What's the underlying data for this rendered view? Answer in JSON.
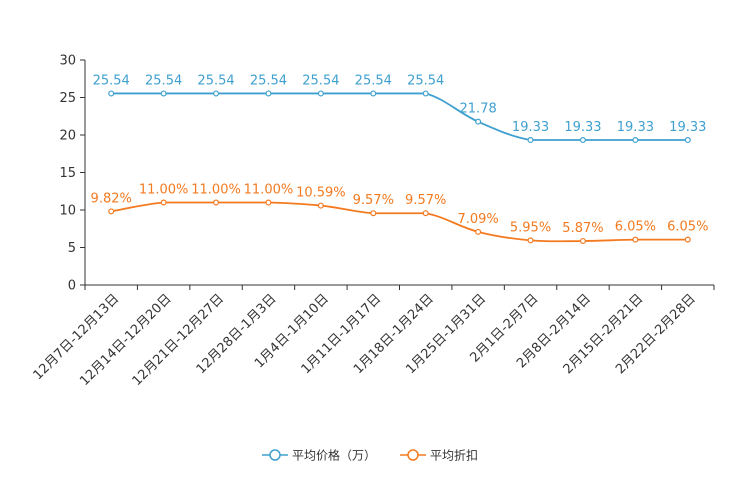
{
  "chart_data": {
    "type": "line",
    "title": "",
    "xlabel": "",
    "ylabel": "",
    "ylim": [
      0,
      30
    ],
    "yticks": [
      0,
      5,
      10,
      15,
      20,
      25,
      30
    ],
    "grid": false,
    "legend_position": "bottom-center",
    "categories": [
      "12月7日-12月13日",
      "12月14日-12月20日",
      "12月21日-12月27日",
      "12月28日-1月3日",
      "1月4日-1月10日",
      "1月11日-1月17日",
      "1月18日-1月24日",
      "1月25日-1月31日",
      "2月1日-2月7日",
      "2月8日-2月14日",
      "2月15日-2月21日",
      "2月22日-2月28日"
    ],
    "series": [
      {
        "name": "平均价格（万）",
        "color": "#3fa0cf",
        "values": [
          25.54,
          25.54,
          25.54,
          25.54,
          25.54,
          25.54,
          25.54,
          21.78,
          19.33,
          19.33,
          19.33,
          19.33
        ],
        "labels": [
          "25.54",
          "25.54",
          "25.54",
          "25.54",
          "25.54",
          "25.54",
          "25.54",
          "21.78",
          "19.33",
          "19.33",
          "19.33",
          "19.33"
        ]
      },
      {
        "name": "平均折扣",
        "color": "#f47a20",
        "values": [
          9.82,
          11.0,
          11.0,
          11.0,
          10.59,
          9.57,
          9.57,
          7.09,
          5.95,
          5.87,
          6.05,
          6.05
        ],
        "labels": [
          "9.82%",
          "11.00%",
          "11.00%",
          "11.00%",
          "10.59%",
          "9.57%",
          "9.57%",
          "7.09%",
          "5.95%",
          "5.87%",
          "6.05%",
          "6.05%"
        ]
      }
    ]
  }
}
